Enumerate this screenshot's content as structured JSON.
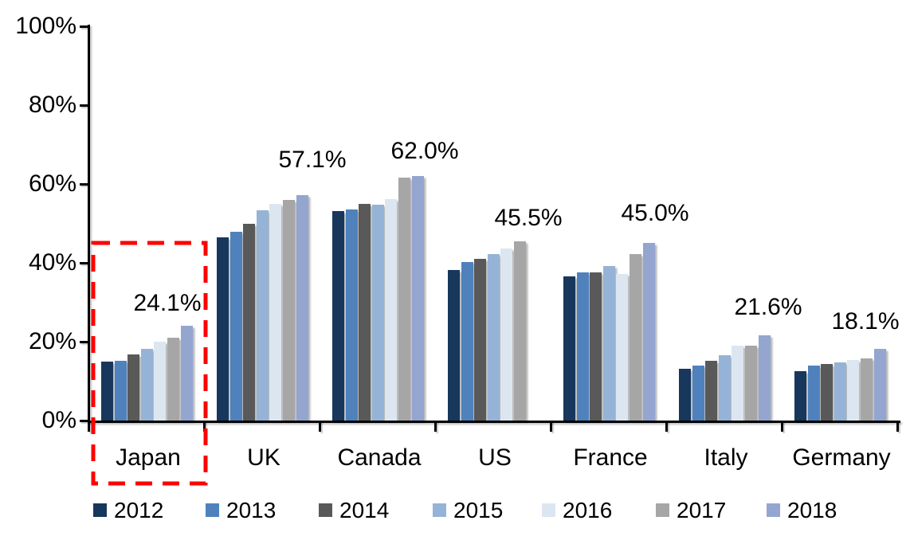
{
  "chart_data": {
    "type": "bar",
    "title": "",
    "categories": [
      "Japan",
      "UK",
      "Canada",
      "US",
      "France",
      "Italy",
      "Germany"
    ],
    "series": [
      {
        "name": "2012",
        "color": "#17375D",
        "values": [
          15.0,
          46.4,
          53.1,
          38.2,
          36.5,
          13.2,
          12.6
        ]
      },
      {
        "name": "2013",
        "color": "#4F81BD",
        "values": [
          15.1,
          47.8,
          53.5,
          40.3,
          37.6,
          13.9,
          14.0
        ]
      },
      {
        "name": "2014",
        "color": "#595959",
        "values": [
          16.8,
          49.9,
          54.9,
          41.1,
          37.6,
          15.2,
          14.4
        ]
      },
      {
        "name": "2015",
        "color": "#95B3D7",
        "values": [
          18.1,
          53.3,
          54.7,
          42.2,
          39.2,
          16.6,
          14.7
        ]
      },
      {
        "name": "2016",
        "color": "#DCE6F1",
        "values": [
          20.0,
          54.9,
          56.2,
          43.7,
          37.2,
          18.9,
          15.3
        ]
      },
      {
        "name": "2017",
        "color": "#A6A6A6",
        "values": [
          21.0,
          55.9,
          61.6,
          45.5,
          42.3,
          19.1,
          15.8
        ]
      },
      {
        "name": "2018",
        "color": "#94A5D0",
        "values": [
          24.1,
          57.1,
          62.0,
          null,
          45.0,
          21.6,
          18.1
        ]
      }
    ],
    "ylim": [
      0,
      100
    ],
    "ytick_labels": [
      "0%",
      "20%",
      "40%",
      "60%",
      "80%",
      "100%"
    ],
    "grid": false,
    "legend_position": "bottom",
    "legend_labels": [
      "2012",
      "2013",
      "2014",
      "2015",
      "2016",
      "2017",
      "2018"
    ],
    "callouts": [
      {
        "category": "Japan",
        "text": "24.1%"
      },
      {
        "category": "UK",
        "text": "57.1%"
      },
      {
        "category": "Canada",
        "text": "62.0%"
      },
      {
        "category": "US",
        "text": "45.5%"
      },
      {
        "category": "France",
        "text": "45.0%"
      },
      {
        "category": "Italy",
        "text": "21.6%"
      },
      {
        "category": "Germany",
        "text": "18.1%"
      }
    ],
    "highlight": {
      "type": "dashed-rectangle",
      "color": "#FF0000",
      "category": "Japan"
    }
  }
}
